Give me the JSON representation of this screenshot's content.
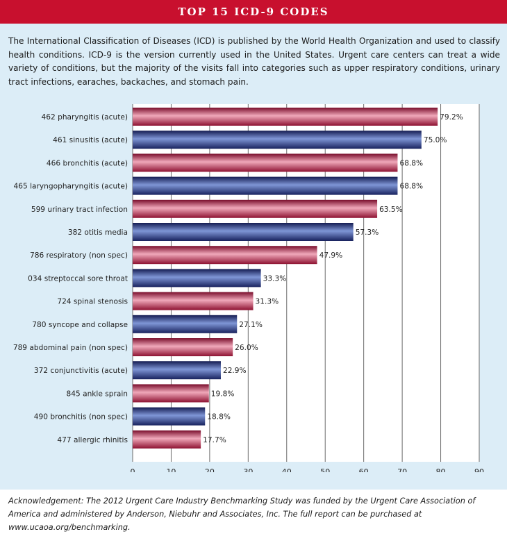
{
  "title": "TOP 15 ICD-9 CODES",
  "intro": "The International Classification of Diseases (ICD) is published by the World Health Organization and used to classify health conditions. ICD-9 is the version currently used in the United States. Urgent care centers can treat a wide variety of conditions, but the majority of the visits fall into categories such as upper respiratory conditions, urinary tract infections, earaches, backaches, and stomach pain.",
  "acknowledgement": "Acknowledgement: The 2012 Urgent Care Industry Benchmarking Study was funded by the Urgent Care Association of America and administered by Anderson, Niebuhr and Associates, Inc. The full report can be purchased at www.ucaoa.org/benchmarking.",
  "colors": {
    "title_bg": "#c8102e",
    "panel_bg": "#dcedf7",
    "bar_red": "#b5173f",
    "bar_blue": "#22307a"
  },
  "chart_data": {
    "type": "bar",
    "orientation": "horizontal",
    "title": "",
    "xlabel": "",
    "ylabel": "",
    "xlim": [
      0,
      90
    ],
    "xticks": [
      0,
      10,
      20,
      30,
      40,
      50,
      60,
      70,
      80,
      90
    ],
    "grid": "vertical lines",
    "categories": [
      "462 pharyngitis (acute)",
      "461 sinusitis (acute)",
      "466 bronchitis (acute)",
      "465 laryngopharyngitis (acute)",
      "599 urinary tract infection",
      "382 otitis media",
      "786 respiratory (non spec)",
      "034 streptoccal sore throat",
      "724 spinal stenosis",
      "780 syncope and collapse",
      "789 abdominal pain (non spec)",
      "372 conjunctivitis (acute)",
      "845 ankle sprain",
      "490 bronchitis (non spec)",
      "477 allergic rhinitis"
    ],
    "values": [
      79.2,
      75.0,
      68.8,
      68.8,
      63.5,
      57.3,
      47.9,
      33.3,
      31.3,
      27.1,
      26.0,
      22.9,
      19.8,
      18.8,
      17.7
    ],
    "value_labels": [
      "79.2%",
      "75.0%",
      "68.8%",
      "68.8%",
      "63.5%",
      "57.3%",
      "47.9%",
      "33.3%",
      "31.3%",
      "27.1%",
      "26.0%",
      "22.9%",
      "19.8%",
      "18.8%",
      "17.7%"
    ],
    "bar_colors": [
      "red",
      "blue",
      "red",
      "blue",
      "red",
      "blue",
      "red",
      "blue",
      "red",
      "blue",
      "red",
      "blue",
      "red",
      "blue",
      "red"
    ]
  }
}
